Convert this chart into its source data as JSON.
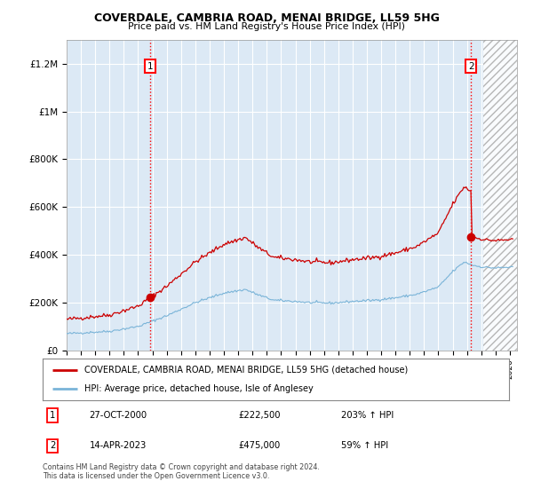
{
  "title1": "COVERDALE, CAMBRIA ROAD, MENAI BRIDGE, LL59 5HG",
  "title2": "Price paid vs. HM Land Registry's House Price Index (HPI)",
  "background_color": "#dce9f5",
  "plot_bg_color": "#dce9f5",
  "hpi_line_color": "#7ab4d8",
  "price_line_color": "#cc0000",
  "ylabel_ticks": [
    "£0",
    "£200K",
    "£400K",
    "£600K",
    "£800K",
    "£1M",
    "£1.2M"
  ],
  "ytick_values": [
    0,
    200000,
    400000,
    600000,
    800000,
    1000000,
    1200000
  ],
  "ylim": [
    0,
    1300000
  ],
  "xlim_start": 1995.0,
  "xlim_end": 2026.5,
  "sale1_year": 2000.83,
  "sale1_price": 222500,
  "sale1_label": "1",
  "sale2_year": 2023.29,
  "sale2_price": 475000,
  "sale2_label": "2",
  "hatch_start": 2024.17,
  "legend_line1": "COVERDALE, CAMBRIA ROAD, MENAI BRIDGE, LL59 5HG (detached house)",
  "legend_line2": "HPI: Average price, detached house, Isle of Anglesey",
  "table_row1_num": "1",
  "table_row1_date": "27-OCT-2000",
  "table_row1_price": "£222,500",
  "table_row1_hpi": "203% ↑ HPI",
  "table_row2_num": "2",
  "table_row2_date": "14-APR-2023",
  "table_row2_price": "£475,000",
  "table_row2_hpi": "59% ↑ HPI",
  "footnote": "Contains HM Land Registry data © Crown copyright and database right 2024.\nThis data is licensed under the Open Government Licence v3.0."
}
